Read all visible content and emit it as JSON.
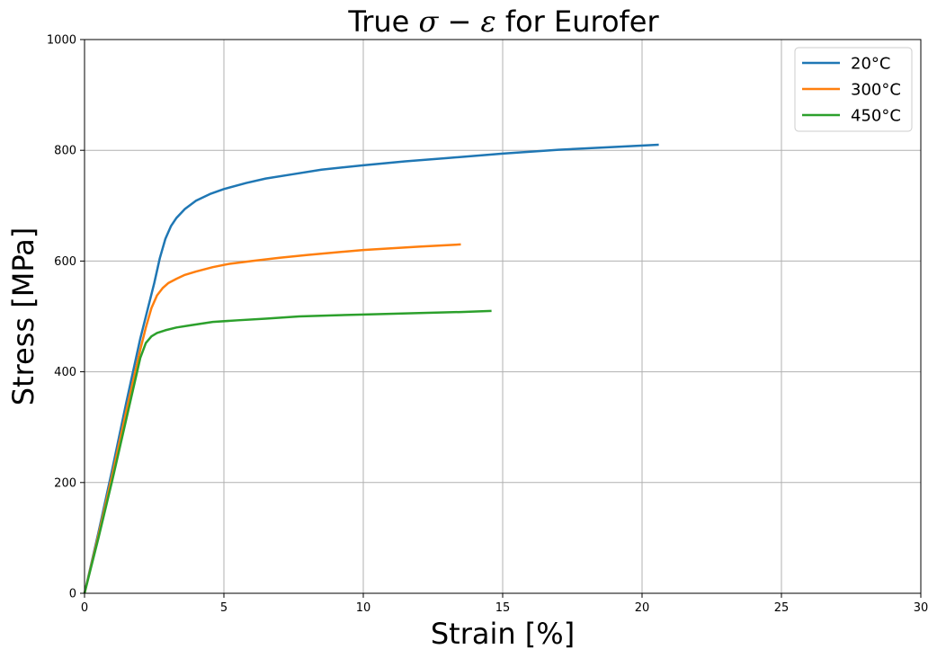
{
  "chart_data": {
    "type": "line",
    "title": {
      "prefix": "True ",
      "sigma": "σ",
      "operator": " − ",
      "epsilon": "ε",
      "suffix": " for Eurofer"
    },
    "xlabel": "Strain [%]",
    "ylabel": "Stress [MPa]",
    "xlim": [
      0,
      30
    ],
    "ylim": [
      0,
      1000
    ],
    "xticks": [
      0,
      5,
      10,
      15,
      20,
      25,
      30
    ],
    "yticks": [
      0,
      200,
      400,
      600,
      800,
      1000
    ],
    "grid": true,
    "legend_position": "top-right",
    "series": [
      {
        "name": "20°C",
        "color": "#1f77b4",
        "x": [
          0,
          0.5,
          1.0,
          1.5,
          2.0,
          2.3,
          2.5,
          2.7,
          2.9,
          3.1,
          3.3,
          3.6,
          4.0,
          4.5,
          5.0,
          5.8,
          6.5,
          7.5,
          8.5,
          10,
          11.5,
          13,
          15,
          17,
          19,
          20.6
        ],
        "y": [
          0,
          110,
          225,
          345,
          460,
          520,
          560,
          605,
          640,
          663,
          678,
          694,
          709,
          721,
          730,
          741,
          749,
          757,
          765,
          773,
          780,
          786,
          794,
          801,
          806,
          810
        ]
      },
      {
        "name": "300°C",
        "color": "#ff7f0e",
        "x": [
          0,
          0.5,
          1.0,
          1.5,
          2.0,
          2.2,
          2.4,
          2.6,
          2.8,
          3.0,
          3.3,
          3.6,
          4.0,
          4.6,
          5.2,
          6.0,
          7.0,
          8.0,
          10,
          12,
          13.5
        ],
        "y": [
          0,
          105,
          215,
          330,
          440,
          480,
          515,
          538,
          551,
          560,
          568,
          575,
          581,
          589,
          595,
          600,
          606,
          611,
          620,
          626,
          630
        ]
      },
      {
        "name": "450°C",
        "color": "#2ca02c",
        "x": [
          0,
          0.5,
          1.0,
          1.5,
          2.0,
          2.2,
          2.4,
          2.6,
          2.9,
          3.3,
          3.8,
          4.6,
          5.5,
          6.5,
          7.7,
          9,
          10.5,
          12,
          13.5,
          14.6
        ],
        "y": [
          0,
          100,
          205,
          315,
          425,
          452,
          464,
          470,
          475,
          480,
          484,
          490,
          493,
          496,
          500,
          502,
          504,
          506,
          508,
          510
        ]
      }
    ]
  }
}
